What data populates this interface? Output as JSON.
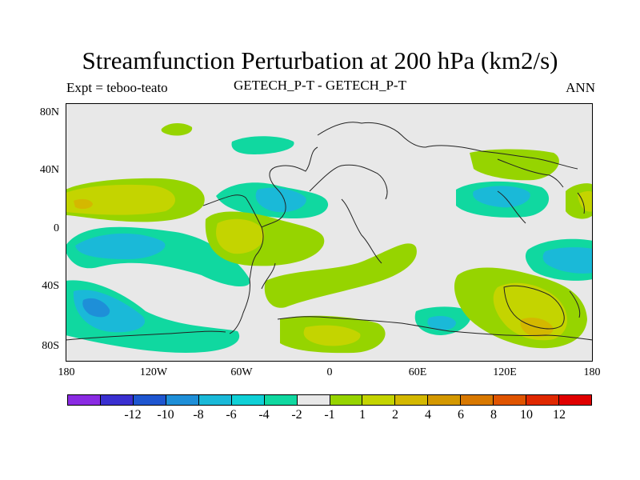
{
  "title": "Streamfunction Perturbation at 200 hPa (km2/s)",
  "subtitle_left": "Expt = teboo-teato",
  "subtitle_center": "GETECH_P-T - GETECH_P-T",
  "subtitle_right": "ANN",
  "lat_labels": [
    "80N",
    "40N",
    "0",
    "40S",
    "80S"
  ],
  "lon_labels": [
    "180",
    "120W",
    "60W",
    "0",
    "60E",
    "120E",
    "180"
  ],
  "colorbar": {
    "colors": [
      "#8a2be2",
      "#3a2fd0",
      "#1e56d0",
      "#1e8fd8",
      "#1ab9d8",
      "#10d0d6",
      "#10d8a0",
      "#e8e8e8",
      "#96d400",
      "#c4d400",
      "#d4b800",
      "#d49800",
      "#d87800",
      "#e05400",
      "#e02800",
      "#e00000"
    ],
    "labels": [
      "-12",
      "-10",
      "-8",
      "-6",
      "-4",
      "-2",
      "-1",
      "1",
      "2",
      "4",
      "6",
      "8",
      "10",
      "12"
    ]
  }
}
